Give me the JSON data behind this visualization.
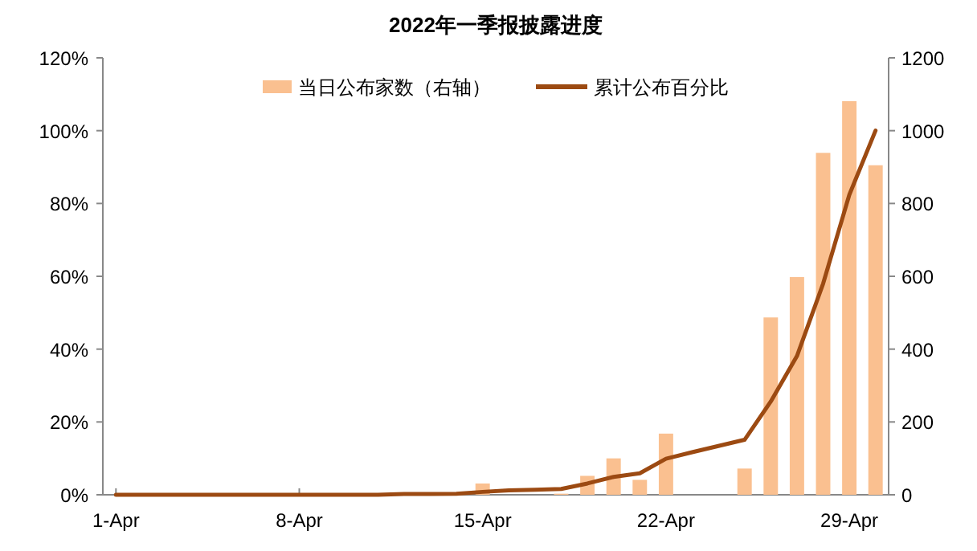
{
  "chart_data": {
    "type": "bar",
    "title": "2022年一季报披露进度",
    "categories": [
      "1-Apr",
      null,
      null,
      null,
      null,
      null,
      null,
      "8-Apr",
      null,
      null,
      null,
      null,
      null,
      null,
      "15-Apr",
      null,
      null,
      null,
      null,
      null,
      null,
      "22-Apr",
      null,
      null,
      null,
      null,
      null,
      null,
      "29-Apr",
      null
    ],
    "series": [
      {
        "name": "当日公布家数（右轴）",
        "axis": "y2",
        "color": "#fac090",
        "values": [
          0,
          0,
          0,
          0,
          0,
          0,
          0,
          0,
          0,
          0,
          0,
          null,
          0,
          0,
          31,
          0,
          0,
          3,
          52,
          100,
          41,
          168,
          0,
          0,
          72,
          487,
          598,
          939,
          1081,
          905
        ]
      },
      {
        "name": "累计公布百分比",
        "type": "line",
        "color": "#9c4a12",
        "values": [
          0,
          0,
          0,
          0,
          0,
          0,
          0,
          0,
          0,
          0,
          0,
          0.2,
          0.2,
          0.3,
          0.8,
          1.2,
          1.4,
          1.6,
          3.1,
          4.9,
          5.9,
          9.9,
          11.7,
          13.4,
          15.1,
          25.6,
          38.1,
          58.0,
          82.4,
          100
        ]
      }
    ],
    "ylim": [
      0,
      120
    ],
    "yticks": [
      {
        "value": 0,
        "label": "0%"
      },
      {
        "value": 20,
        "label": "20%"
      },
      {
        "value": 40,
        "label": "40%"
      },
      {
        "value": 60,
        "label": "60%"
      },
      {
        "value": 80,
        "label": "80%"
      },
      {
        "value": 100,
        "label": "100%"
      },
      {
        "value": 120,
        "label": "120%"
      }
    ],
    "y2lim": [
      0,
      1200
    ],
    "y2ticks": [
      0,
      200,
      400,
      600,
      800,
      1000,
      1200
    ],
    "legend": "top",
    "grid": false
  }
}
